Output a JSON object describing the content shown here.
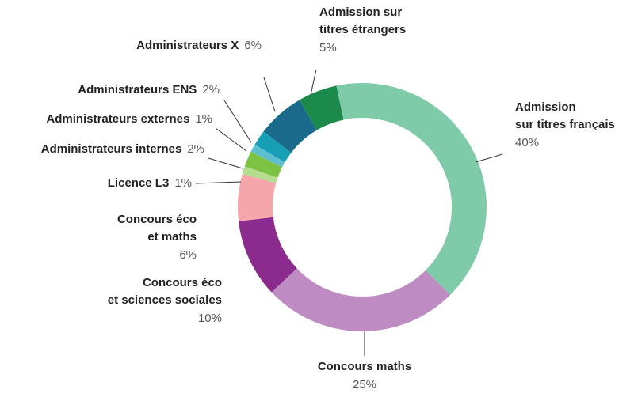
{
  "chart_data": {
    "type": "donut",
    "categories": [
      [
        "Admission",
        "sur titres français"
      ],
      [
        "Concours maths"
      ],
      [
        "Concours éco",
        "et sciences sociales"
      ],
      [
        "Concours éco",
        "et maths"
      ],
      [
        "Licence L3"
      ],
      [
        "Administrateurs internes"
      ],
      [
        "Administrateurs externes"
      ],
      [
        "Administrateurs ENS"
      ],
      [
        "Administrateurs X"
      ],
      [
        "Admission sur",
        "titres étrangers"
      ]
    ],
    "values": [
      40,
      25,
      10,
      6,
      1,
      2,
      1,
      2,
      6,
      5
    ],
    "value_labels": [
      "40%",
      "25%",
      "10%",
      "6%",
      "1%",
      "2%",
      "1%",
      "2%",
      "6%",
      "5%"
    ],
    "colors": [
      "#7fcaa8",
      "#be8cc2",
      "#8c2b8e",
      "#f4a6ab",
      "#b5dc8f",
      "#7cc243",
      "#5ebfd0",
      "#179fb5",
      "#196a8b",
      "#1c8a4a"
    ]
  }
}
